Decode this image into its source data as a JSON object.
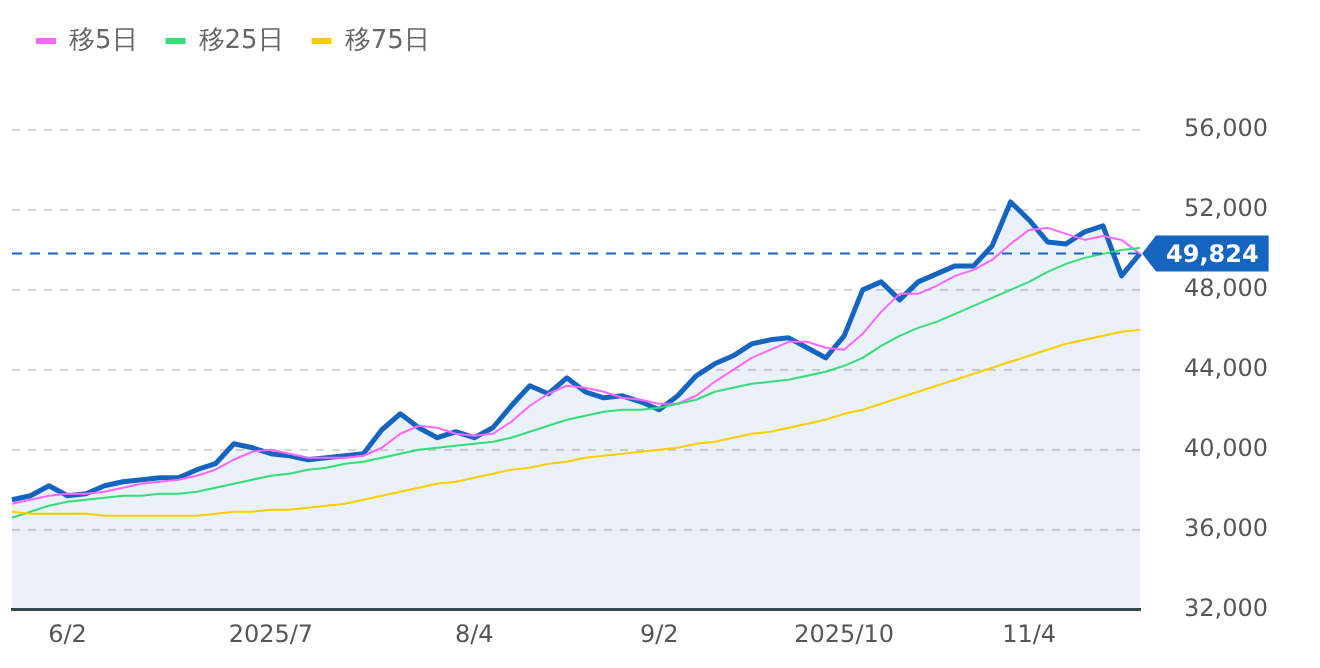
{
  "chart_data": {
    "type": "line",
    "categories": [
      null,
      null,
      null,
      "6/2",
      null,
      null,
      null,
      null,
      null,
      null,
      null,
      null,
      null,
      null,
      "2025/7",
      null,
      null,
      null,
      null,
      null,
      null,
      null,
      null,
      null,
      null,
      "8/4",
      null,
      null,
      null,
      null,
      null,
      null,
      null,
      null,
      null,
      "9/2",
      null,
      null,
      null,
      null,
      null,
      null,
      null,
      null,
      null,
      "2025/10",
      null,
      null,
      null,
      null,
      null,
      null,
      null,
      null,
      null,
      "11/4",
      null,
      null,
      null,
      null,
      null,
      null
    ],
    "series": [
      {
        "type": "area",
        "color": "#1565c0",
        "values": [
          37500,
          37700,
          38200,
          37700,
          37800,
          38200,
          38400,
          38500,
          38600,
          38600,
          39000,
          39300,
          40300,
          40100,
          39800,
          39700,
          39500,
          39600,
          39700,
          39800,
          41000,
          41800,
          41100,
          40600,
          40900,
          40600,
          41100,
          42200,
          43200,
          42800,
          43600,
          42900,
          42600,
          42700,
          42400,
          42000,
          42700,
          43700,
          44300,
          44700,
          45300,
          45500,
          45600,
          45100,
          44600,
          45700,
          48000,
          48400,
          47500,
          48400,
          48800,
          49200,
          49200,
          50200,
          52400,
          51500,
          50400,
          50300,
          50900,
          51200,
          48700,
          49824
        ]
      },
      {
        "type": "line",
        "name": "移5日",
        "color": "#ff66ff",
        "values": [
          37300,
          37500,
          37700,
          37800,
          37800,
          37900,
          38100,
          38300,
          38400,
          38500,
          38700,
          39000,
          39500,
          39900,
          40000,
          39800,
          39600,
          39600,
          39600,
          39700,
          40100,
          40800,
          41200,
          41100,
          40800,
          40700,
          40800,
          41400,
          42200,
          42800,
          43200,
          43100,
          42900,
          42600,
          42500,
          42300,
          42300,
          42700,
          43400,
          44000,
          44600,
          45000,
          45400,
          45400,
          45100,
          45000,
          45800,
          46900,
          47800,
          47800,
          48200,
          48700,
          49000,
          49500,
          50300,
          51000,
          51100,
          50800,
          50500,
          50700,
          50500,
          49800
        ]
      },
      {
        "type": "line",
        "name": "移25日",
        "color": "#33dd77",
        "values": [
          36600,
          36900,
          37200,
          37400,
          37500,
          37600,
          37700,
          37700,
          37800,
          37800,
          37900,
          38100,
          38300,
          38500,
          38700,
          38800,
          39000,
          39100,
          39300,
          39400,
          39600,
          39800,
          40000,
          40100,
          40200,
          40300,
          40400,
          40600,
          40900,
          41200,
          41500,
          41700,
          41900,
          42000,
          42000,
          42100,
          42300,
          42500,
          42900,
          43100,
          43300,
          43400,
          43500,
          43700,
          43900,
          44200,
          44600,
          45200,
          45700,
          46100,
          46400,
          46800,
          47200,
          47600,
          48000,
          48400,
          48900,
          49300,
          49600,
          49800,
          50000,
          50100
        ]
      },
      {
        "type": "line",
        "name": "移75日",
        "color": "#ffcc00",
        "values": [
          36900,
          36800,
          36800,
          36800,
          36800,
          36700,
          36700,
          36700,
          36700,
          36700,
          36700,
          36800,
          36900,
          36900,
          37000,
          37000,
          37100,
          37200,
          37300,
          37500,
          37700,
          37900,
          38100,
          38300,
          38400,
          38600,
          38800,
          39000,
          39100,
          39300,
          39400,
          39600,
          39700,
          39800,
          39900,
          40000,
          40100,
          40300,
          40400,
          40600,
          40800,
          40900,
          41100,
          41300,
          41500,
          41800,
          42000,
          42300,
          42600,
          42900,
          43200,
          43500,
          43800,
          44100,
          44400,
          44700,
          45000,
          45300,
          45500,
          45700,
          45900,
          46000
        ]
      }
    ],
    "ylim": [
      32000,
      56000
    ],
    "yticks": [
      {
        "value": 32000,
        "label": "32,000"
      },
      {
        "value": 36000,
        "label": "36,000"
      },
      {
        "value": 40000,
        "label": "40,000"
      },
      {
        "value": 44000,
        "label": "44,000"
      },
      {
        "value": 48000,
        "label": "48,000"
      },
      {
        "value": 52000,
        "label": "52,000"
      },
      {
        "value": 56000,
        "label": "56,000"
      }
    ],
    "ref_lines": [
      {
        "axis": "y",
        "value": 49824,
        "label": "49,824",
        "color": "#1565c0",
        "line_style": "dashed"
      }
    ],
    "grid": "y",
    "legend": "top left",
    "marker": "none"
  }
}
